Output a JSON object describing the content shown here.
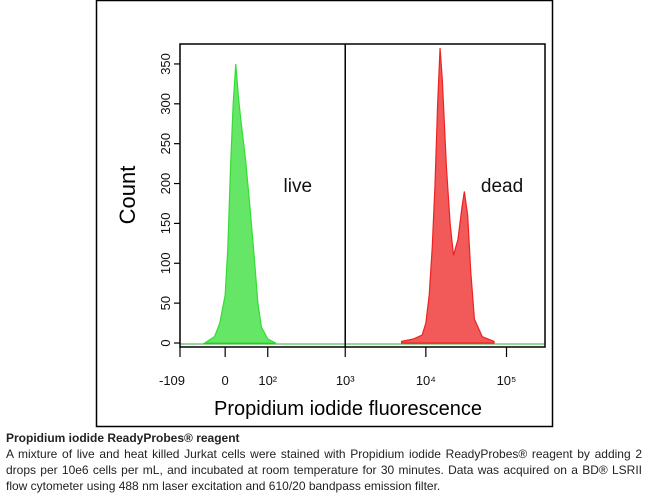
{
  "chart_data": {
    "type": "histogram",
    "xlabel": "Propidium iodide fluorescence",
    "ylabel": "Count",
    "xscale": "biexponential",
    "xlim": [
      -109,
      300000
    ],
    "ylim": [
      0,
      370
    ],
    "xticks": [
      -109,
      0,
      {
        "value": 100,
        "label": "10²"
      },
      {
        "value": 1000,
        "label": "10³"
      },
      {
        "value": 10000,
        "label": "10⁴"
      },
      {
        "value": 100000,
        "label": "10⁵"
      }
    ],
    "yticks": [
      0,
      50,
      100,
      150,
      200,
      250,
      300,
      350
    ],
    "gate_x": 1000,
    "series": [
      {
        "name": "live",
        "color": "#33dd33",
        "x": [
          -40,
          -20,
          -10,
          0,
          5,
          10,
          15,
          20,
          25,
          30,
          40,
          50,
          60,
          70,
          80,
          100,
          130
        ],
        "values": [
          0,
          8,
          25,
          60,
          120,
          220,
          300,
          350,
          310,
          280,
          230,
          170,
          110,
          50,
          20,
          5,
          0
        ]
      },
      {
        "name": "dead",
        "color": "#ee2222",
        "x": [
          5000,
          7000,
          9000,
          10000,
          11000,
          12000,
          13000,
          14000,
          15000,
          16000,
          18000,
          20000,
          22000,
          25000,
          28000,
          30000,
          33000,
          36000,
          40000,
          50000,
          70000
        ],
        "values": [
          2,
          5,
          10,
          25,
          60,
          120,
          200,
          300,
          370,
          330,
          220,
          150,
          110,
          130,
          170,
          190,
          160,
          90,
          30,
          8,
          2
        ]
      }
    ]
  },
  "caption": {
    "title": "Propidium iodide ReadyProbes® reagent",
    "text": "A mixture of live and heat killed Jurkat cells were stained with Propidium iodide ReadyProbes® reagent by adding 2 drops per 10e6 cells per mL, and incubated at room temperature for 30 minutes. Data was acquired on a BD® LSRII flow cytometer using 488 nm laser excitation and 610/20 bandpass emission filter."
  }
}
